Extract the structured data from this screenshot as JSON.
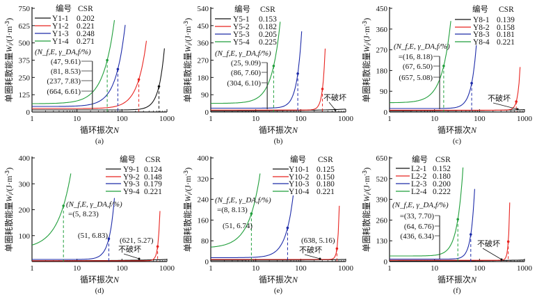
{
  "common": {
    "xlabel": "循环振次",
    "xlabel_var": "N",
    "ylabel": "单圈耗散能量",
    "ylabel_var": "W",
    "ylabel_sub": "i",
    "ylabel_unit": "/(J·m",
    "ylabel_exp": "-3",
    "ylabel_close": ")",
    "legend_header_id": "编号",
    "legend_header_csr": "CSR",
    "annotation_header": "(N_f,E, γ_DA,f/%)",
    "no_failure_label": "不破坏",
    "x_ticks": [
      "1",
      "10",
      "100",
      "1000"
    ]
  },
  "colors": {
    "black": "#111111",
    "red": "#e8231f",
    "blue": "#1c2aa8",
    "green": "#1f9e3a"
  },
  "chart_data": [
    {
      "type": "line",
      "caption": "(a)",
      "xscale": "log",
      "xlim": [
        1,
        1000
      ],
      "ylim": [
        0,
        750
      ],
      "y_ticks": [
        "0",
        "125",
        "250",
        "375",
        "500",
        "625",
        "750"
      ],
      "legend": "top-left",
      "series": [
        {
          "name": "Y1-1",
          "csr": "0.202",
          "color": "black",
          "w_start": 15,
          "failure": {
            "N": 664,
            "gamma": 6.61,
            "W": 185,
            "label": "(664, 6.61)"
          },
          "end": [
            880,
            460
          ]
        },
        {
          "name": "Y1-2",
          "csr": "0.221",
          "color": "red",
          "w_start": 25,
          "failure": {
            "N": 237,
            "gamma": 7.83,
            "W": 235,
            "label": "(237, 7.83)"
          },
          "end": [
            350,
            515
          ]
        },
        {
          "name": "Y1-3",
          "csr": "0.248",
          "color": "blue",
          "w_start": 40,
          "failure": {
            "N": 81,
            "gamma": 8.53,
            "W": 310,
            "label": "(81, 8.53)"
          },
          "end": [
            118,
            630
          ]
        },
        {
          "name": "Y1-4",
          "csr": "0.271",
          "color": "green",
          "w_start": 60,
          "failure": {
            "N": 47,
            "gamma": 9.61,
            "W": 375,
            "label": "(47, 9.61)"
          },
          "end": [
            68,
            665
          ]
        }
      ]
    },
    {
      "type": "line",
      "caption": "(b)",
      "xscale": "log",
      "xlim": [
        1,
        1000
      ],
      "ylim": [
        0,
        540
      ],
      "y_ticks": [
        "0",
        "90",
        "180",
        "270",
        "360",
        "450",
        "540"
      ],
      "legend": "top-left",
      "series": [
        {
          "name": "Y5-1",
          "csr": "0.153",
          "color": "black",
          "w_start": 5,
          "failure": null,
          "end": [
            1000,
            15
          ]
        },
        {
          "name": "Y5-2",
          "csr": "0.182",
          "color": "red",
          "w_start": 10,
          "failure": {
            "N": 304,
            "gamma": 6.1,
            "W": 120,
            "label": "(304, 6.10)"
          },
          "end": [
            350,
            330
          ]
        },
        {
          "name": "Y5-3",
          "csr": "0.205",
          "color": "blue",
          "w_start": 20,
          "failure": {
            "N": 86,
            "gamma": 7.6,
            "W": 200,
            "label": "(86, 7.60)"
          },
          "end": [
            105,
            420
          ]
        },
        {
          "name": "Y5-4",
          "csr": "0.225",
          "color": "green",
          "w_start": 45,
          "failure": {
            "N": 25,
            "gamma": 9.09,
            "W": 240,
            "label": "(25, 9.09)"
          },
          "end": [
            35,
            470
          ]
        }
      ]
    },
    {
      "type": "line",
      "caption": "(c)",
      "xscale": "log",
      "xlim": [
        1,
        1000
      ],
      "ylim": [
        0,
        450
      ],
      "y_ticks": [
        "0",
        "90",
        "180",
        "270",
        "360",
        "450"
      ],
      "legend": "top-right",
      "series": [
        {
          "name": "Y8-1",
          "csr": "0.139",
          "color": "black",
          "w_start": 5,
          "failure": null,
          "end": [
            1000,
            10
          ]
        },
        {
          "name": "Y8-2",
          "csr": "0.158",
          "color": "red",
          "w_start": 8,
          "failure": {
            "N": 657,
            "gamma": 5.08,
            "W": 45,
            "label": "(657, 5.08)"
          },
          "end": [
            800,
            195
          ]
        },
        {
          "name": "Y8-3",
          "csr": "0.181",
          "color": "blue",
          "w_start": 15,
          "failure": {
            "N": 67,
            "gamma": 6.5,
            "W": 125,
            "label": "(67, 6.50)"
          },
          "end": [
            85,
            290
          ]
        },
        {
          "name": "Y8-4",
          "csr": "0.221",
          "color": "green",
          "w_start": 40,
          "failure": {
            "N": 16,
            "gamma": 8.18,
            "W": 200,
            "label": "=(16, 8.18)"
          },
          "end": [
            23,
            395
          ]
        }
      ]
    },
    {
      "type": "line",
      "caption": "(d)",
      "xscale": "log",
      "xlim": [
        1,
        1000
      ],
      "ylim": [
        0,
        400
      ],
      "y_ticks": [
        "100",
        "200",
        "300",
        "400"
      ],
      "legend": "top-right",
      "series": [
        {
          "name": "Y9-1",
          "csr": "0.124",
          "color": "black",
          "w_start": 3,
          "failure": null,
          "end": [
            1000,
            8
          ]
        },
        {
          "name": "Y9-2",
          "csr": "0.148",
          "color": "red",
          "w_start": 3,
          "failure": {
            "N": 621,
            "gamma": 5.27,
            "W": 58,
            "label": "(621, 5.27)"
          },
          "end": [
            700,
            195
          ]
        },
        {
          "name": "Y9-3",
          "csr": "0.179",
          "color": "blue",
          "w_start": 8,
          "failure": {
            "N": 51,
            "gamma": 6.83,
            "W": 88,
            "label": "(51, 6.83)"
          },
          "end": [
            68,
            245
          ]
        },
        {
          "name": "Y9-4",
          "csr": "0.221",
          "color": "green",
          "w_start": 48,
          "failure": {
            "N": 5,
            "gamma": 8.23,
            "W": 215,
            "label": "=(5, 8.23)"
          },
          "end": [
            7.3,
            340
          ]
        }
      ]
    },
    {
      "type": "line",
      "caption": "(e)",
      "xscale": "log",
      "xlim": [
        1,
        1000
      ],
      "ylim": [
        0,
        400
      ],
      "y_ticks": [
        "0",
        "80",
        "160",
        "240",
        "320",
        "400"
      ],
      "legend": "top-right",
      "series": [
        {
          "name": "Y10-1",
          "csr": "0.125",
          "color": "black",
          "w_start": 5,
          "failure": null,
          "end": [
            1000,
            8
          ]
        },
        {
          "name": "Y10-2",
          "csr": "0.150",
          "color": "red",
          "w_start": 8,
          "failure": {
            "N": 638,
            "gamma": 5.16,
            "W": 50,
            "label": "(638, 5.16)"
          },
          "end": [
            720,
            215
          ]
        },
        {
          "name": "Y10-3",
          "csr": "0.180",
          "color": "blue",
          "w_start": 15,
          "failure": {
            "N": 51,
            "gamma": 6.74,
            "W": 130,
            "label": "(51, 6.74)"
          },
          "end": [
            68,
            255
          ]
        },
        {
          "name": "Y10-4",
          "csr": "0.221",
          "color": "green",
          "w_start": 52,
          "failure": {
            "N": 8,
            "gamma": 8.13,
            "W": 185,
            "label": "=(8, 8.13)"
          },
          "end": [
            12.5,
            340
          ]
        }
      ]
    },
    {
      "type": "line",
      "caption": "(f)",
      "xscale": "log",
      "xlim": [
        1,
        1000
      ],
      "ylim": [
        0,
        650
      ],
      "y_ticks": [
        "0",
        "130",
        "260",
        "390",
        "520",
        "650"
      ],
      "legend": "top-left",
      "series": [
        {
          "name": "L2-1",
          "csr": "0.152",
          "color": "black",
          "w_start": 3,
          "failure": null,
          "end": [
            1000,
            10
          ]
        },
        {
          "name": "L2-2",
          "csr": "0.180",
          "color": "red",
          "w_start": 8,
          "failure": {
            "N": 436,
            "gamma": 6.34,
            "W": 125,
            "label": "(436, 6.34)"
          },
          "end": [
            470,
            370
          ]
        },
        {
          "name": "L2-3",
          "csr": "0.200",
          "color": "blue",
          "w_start": 15,
          "failure": {
            "N": 64,
            "gamma": 6.76,
            "W": 170,
            "label": "(64, 6.76)"
          },
          "end": [
            78,
            455
          ]
        },
        {
          "name": "L2-4",
          "csr": "0.222",
          "color": "green",
          "w_start": 35,
          "failure": {
            "N": 33,
            "gamma": 7.7,
            "W": 265,
            "label": "=(33, 7.70)"
          },
          "end": [
            43,
            590
          ]
        }
      ]
    }
  ]
}
